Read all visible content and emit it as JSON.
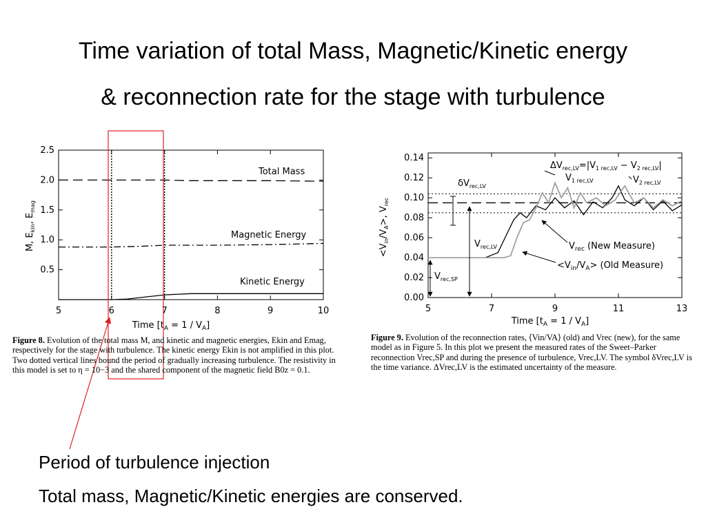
{
  "slide": {
    "title_line1": "Time variation of total Mass, Magnetic/Kinetic energy",
    "title_line2": "& reconnection rate for the stage with turbulence",
    "annotation1": "Period of turbulence injection",
    "annotation2": "Total mass, Magnetic/Kinetic energies are conserved.",
    "highlight_color": "#e02020"
  },
  "figure8": {
    "caption_label": "Figure 8.",
    "caption_text": "Evolution of the total mass M, and kinetic and magnetic energies, Ekin and Emag, respectively for the stage with turbulence. The kinetic energy Ekin is not amplified in this plot. Two dotted vertical lines bound the period of gradually increasing turbulence. The resistivity in this model is set to η = 10−3 and the shared component of the magnetic field B0z = 0.1."
  },
  "figure9": {
    "caption_label": "Figure 9.",
    "caption_text": "Evolution of the reconnection rates, ⟨Vin/VA⟩ (old) and Vrec (new), for the same model as in Figure 5. In this plot we present the measured rates of the Sweet–Parker reconnection Vrec,SP and during the presence of turbulence, Vrec,LV. The symbol δVrec,LV is the time variance. ΔVrec,LV is the estimated uncertainty of the measure."
  },
  "chart_data": [
    {
      "type": "line",
      "title": "",
      "xlabel": "Time [tA = 1 / VA]",
      "ylabel": "M, Ekin, Emag",
      "xlim": [
        5,
        10
      ],
      "ylim": [
        0,
        2.5
      ],
      "xticks": [
        "5",
        "6",
        "7",
        "8",
        "9",
        "10"
      ],
      "yticks": [
        "0.5",
        "1.0",
        "1.5",
        "2.0",
        "2.5"
      ],
      "vlines": [
        6,
        7
      ],
      "highlight_region": [
        6,
        7
      ],
      "series": [
        {
          "name": "Total Mass",
          "style": "dashed",
          "x": [
            5,
            6,
            7,
            7.5,
            8,
            9,
            10
          ],
          "y": [
            2.0,
            2.0,
            2.0,
            1.99,
            1.99,
            1.99,
            1.98
          ]
        },
        {
          "name": "Magnetic Energy",
          "style": "dashdot",
          "x": [
            5,
            6,
            6.5,
            7,
            7.5,
            8,
            9,
            10
          ],
          "y": [
            0.88,
            0.88,
            0.89,
            0.91,
            0.91,
            0.91,
            0.92,
            0.94
          ]
        },
        {
          "name": "Kinetic Energy",
          "style": "solid",
          "x": [
            5,
            6,
            6.3,
            6.6,
            7,
            7.5,
            8,
            9,
            10
          ],
          "y": [
            0.0,
            0.0,
            0.01,
            0.04,
            0.08,
            0.1,
            0.1,
            0.1,
            0.1
          ]
        }
      ]
    },
    {
      "type": "line",
      "title": "",
      "xlabel": "Time [tA = 1 / VA]",
      "ylabel": "<Vin/VA>, Vrec",
      "xlim": [
        5,
        13
      ],
      "ylim": [
        0,
        0.145
      ],
      "xticks": [
        "5",
        "7",
        "9",
        "11",
        "13"
      ],
      "yticks": [
        "0.00",
        "0.02",
        "0.04",
        "0.06",
        "0.08",
        "0.10",
        "0.12",
        "0.14"
      ],
      "hlines": [
        {
          "y": 0.104,
          "style": "dotted"
        },
        {
          "y": 0.095,
          "style": "dashed"
        },
        {
          "y": 0.085,
          "style": "dotted"
        }
      ],
      "series": [
        {
          "name": "Vrec (New Measure)",
          "style": "solid",
          "color": "#000000",
          "x": [
            5,
            6.8,
            7.2,
            7.5,
            7.7,
            7.9,
            8.1,
            8.4,
            8.7,
            9.0,
            9.3,
            9.6,
            9.9,
            10.2,
            10.5,
            10.8,
            11.0,
            11.2,
            11.5,
            11.8,
            12.1,
            12.4,
            12.7,
            13
          ],
          "y": [
            0.04,
            0.04,
            0.045,
            0.065,
            0.078,
            0.085,
            0.08,
            0.092,
            0.088,
            0.1,
            0.09,
            0.097,
            0.083,
            0.096,
            0.09,
            0.1,
            0.112,
            0.098,
            0.092,
            0.1,
            0.088,
            0.097,
            0.087,
            0.093
          ]
        },
        {
          "name": "<Vin/VA> (Old Measure)",
          "style": "solid",
          "color": "#a0a0a0",
          "x": [
            5,
            7.4,
            7.6,
            7.8,
            8.0,
            8.2,
            8.4,
            8.6,
            8.8,
            9.0,
            9.2,
            9.4,
            9.6,
            9.8,
            10.0,
            10.3,
            10.6,
            10.9,
            11.2,
            11.5,
            11.8,
            12.1,
            12.4,
            12.7,
            13
          ],
          "y": [
            0.04,
            0.04,
            0.042,
            0.06,
            0.075,
            0.078,
            0.09,
            0.105,
            0.095,
            0.115,
            0.1,
            0.11,
            0.09,
            0.105,
            0.095,
            0.1,
            0.092,
            0.098,
            0.112,
            0.095,
            0.1,
            0.09,
            0.098,
            0.092,
            0.097
          ]
        }
      ],
      "labels": {
        "dVrecLV": "δVrec,LV",
        "DeltaVrecLV": "ΔVrec,LV=|V1 rec,LV − V2 rec,LV|",
        "V1": "V1 rec,LV",
        "V2": "V2 rec,LV",
        "VrecLV": "Vrec,LV",
        "VrecSP": "Vrec,SP"
      }
    }
  ]
}
